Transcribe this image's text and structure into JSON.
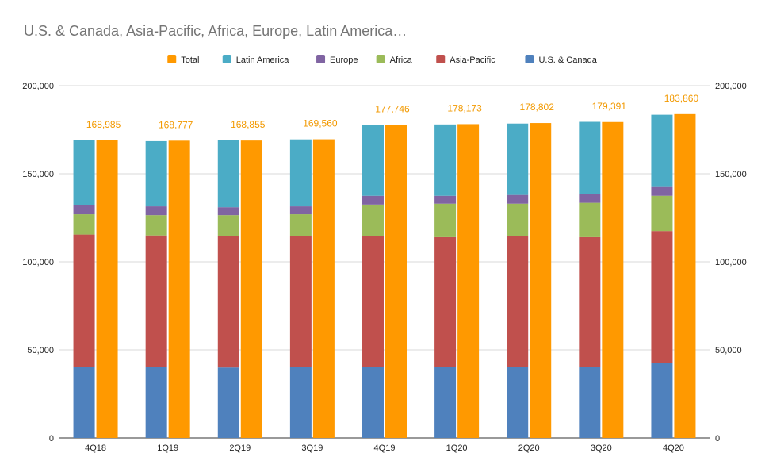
{
  "chart_data": {
    "type": "bar",
    "stacked": true,
    "title": "U.S. & Canada, Asia-Pacific, Africa, Europe, Latin America…",
    "categories": [
      "4Q18",
      "1Q19",
      "2Q19",
      "3Q19",
      "4Q19",
      "1Q20",
      "2Q20",
      "3Q20",
      "4Q20"
    ],
    "series": [
      {
        "name": "U.S. & Canada",
        "color": "#4f81bd",
        "values": [
          40500,
          40500,
          40000,
          40500,
          40500,
          40500,
          40500,
          40500,
          42500
        ],
        "bar": "stack"
      },
      {
        "name": "Asia-Pacific",
        "color": "#c0504d",
        "values": [
          75000,
          74500,
          74500,
          74000,
          74000,
          73500,
          74000,
          73500,
          75000
        ],
        "bar": "stack"
      },
      {
        "name": "Africa",
        "color": "#9bbb59",
        "values": [
          11500,
          11500,
          12000,
          12500,
          18000,
          19000,
          18500,
          19500,
          20000
        ],
        "bar": "stack"
      },
      {
        "name": "Europe",
        "color": "#8064a2",
        "values": [
          5000,
          5000,
          4500,
          4500,
          5000,
          4500,
          5000,
          5000,
          5000
        ],
        "bar": "stack"
      },
      {
        "name": "Latin America",
        "color": "#4bacc6",
        "values": [
          37000,
          37000,
          38000,
          38000,
          40000,
          40500,
          40500,
          41000,
          41000
        ],
        "bar": "stack"
      },
      {
        "name": "Total",
        "color": "#ff9900",
        "values": [
          168985,
          168777,
          168855,
          169560,
          177746,
          178173,
          178802,
          179391,
          183860
        ],
        "bar": "total"
      }
    ],
    "legend_order": [
      "Total",
      "Latin America",
      "Europe",
      "Africa",
      "Asia-Pacific",
      "U.S. & Canada"
    ],
    "total_labels": [
      "168,985",
      "168,777",
      "168,855",
      "169,560",
      "177,746",
      "178,173",
      "178,802",
      "179,391",
      "183,860"
    ],
    "y_ticks": [
      "0",
      "50,000",
      "100,000",
      "150,000",
      "200,000"
    ],
    "y_tick_values": [
      0,
      50000,
      100000,
      150000,
      200000
    ],
    "ylim": [
      0,
      200000
    ],
    "legend_position": "top",
    "grid": true,
    "xlabel": "",
    "ylabel": ""
  }
}
